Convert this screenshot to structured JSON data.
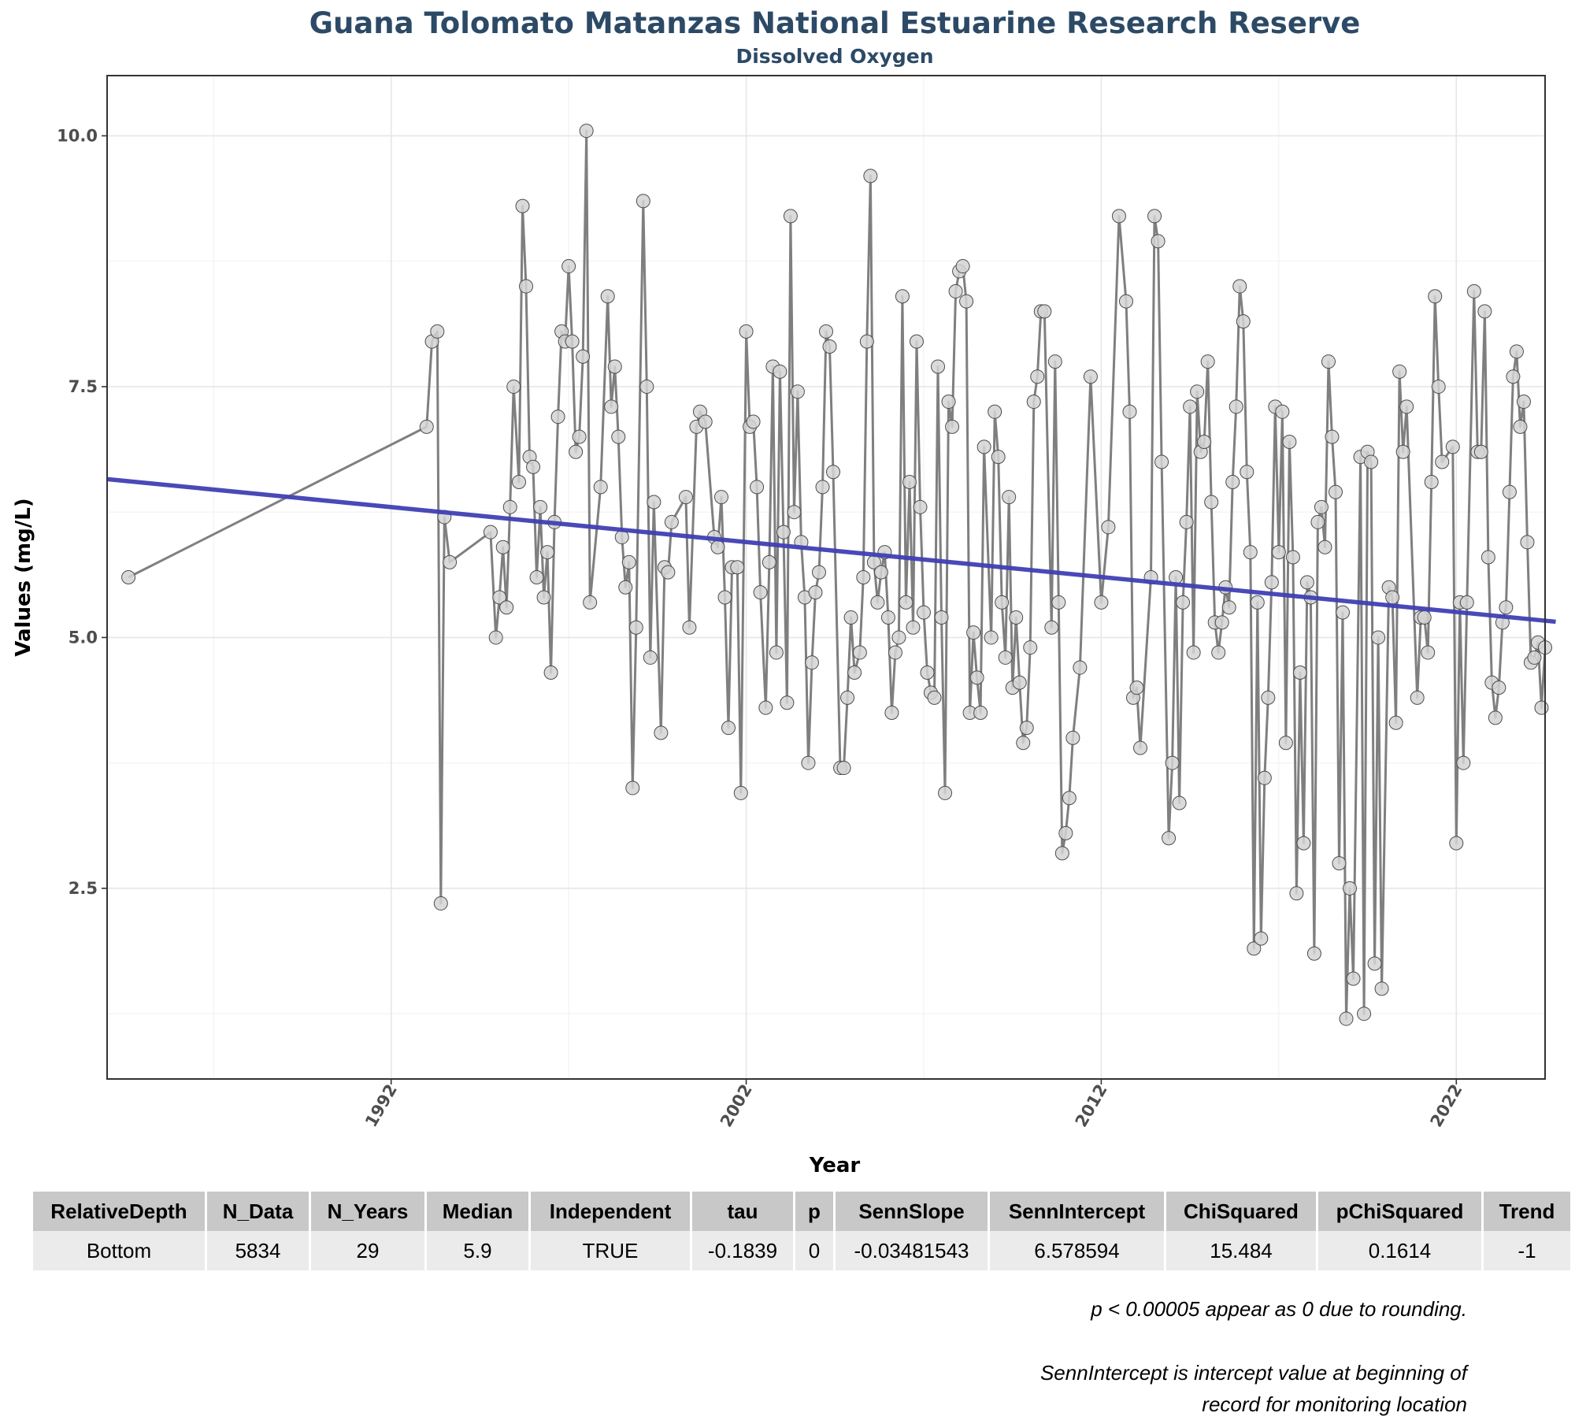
{
  "chart_data": {
    "type": "line",
    "title": "Guana Tolomato Matanzas National Estuarine Research Reserve",
    "subtitle": "Dissolved Oxygen",
    "xlabel": "Year",
    "ylabel": "Values (mg/L)",
    "xlim": [
      1984,
      2024.5
    ],
    "ylim": [
      0.6,
      10.6
    ],
    "x_ticks": [
      1992,
      2002,
      2012,
      2022
    ],
    "y_ticks": [
      "2.5",
      "5.0",
      "7.5",
      "10.0"
    ],
    "grid": true,
    "series": [
      {
        "points": [
          [
            1984.6,
            5.6
          ],
          [
            1993.0,
            7.1
          ],
          [
            1993.15,
            7.95
          ],
          [
            1993.3,
            8.05
          ],
          [
            1993.4,
            2.35
          ],
          [
            1993.5,
            6.2
          ],
          [
            1993.65,
            5.75
          ],
          [
            1994.8,
            6.05
          ],
          [
            1994.95,
            5.0
          ],
          [
            1995.05,
            5.4
          ],
          [
            1995.15,
            5.9
          ],
          [
            1995.25,
            5.3
          ],
          [
            1995.35,
            6.3
          ],
          [
            1995.45,
            7.5
          ],
          [
            1995.6,
            6.55
          ],
          [
            1995.7,
            9.3
          ],
          [
            1995.8,
            8.5
          ],
          [
            1995.9,
            6.8
          ],
          [
            1996.0,
            6.7
          ],
          [
            1996.1,
            5.6
          ],
          [
            1996.2,
            6.3
          ],
          [
            1996.3,
            5.4
          ],
          [
            1996.4,
            5.85
          ],
          [
            1996.5,
            4.65
          ],
          [
            1996.6,
            6.15
          ],
          [
            1996.7,
            7.2
          ],
          [
            1996.8,
            8.05
          ],
          [
            1996.9,
            7.95
          ],
          [
            1997.0,
            8.7
          ],
          [
            1997.1,
            7.95
          ],
          [
            1997.2,
            6.85
          ],
          [
            1997.3,
            7.0
          ],
          [
            1997.4,
            7.8
          ],
          [
            1997.5,
            10.05
          ],
          [
            1997.6,
            5.35
          ],
          [
            1997.9,
            6.5
          ],
          [
            1998.1,
            8.4
          ],
          [
            1998.2,
            7.3
          ],
          [
            1998.3,
            7.7
          ],
          [
            1998.4,
            7.0
          ],
          [
            1998.5,
            6.0
          ],
          [
            1998.6,
            5.5
          ],
          [
            1998.7,
            5.75
          ],
          [
            1998.8,
            3.5
          ],
          [
            1998.9,
            5.1
          ],
          [
            1999.1,
            9.35
          ],
          [
            1999.2,
            7.5
          ],
          [
            1999.3,
            4.8
          ],
          [
            1999.4,
            6.35
          ],
          [
            1999.6,
            4.05
          ],
          [
            1999.7,
            5.7
          ],
          [
            1999.8,
            5.65
          ],
          [
            1999.9,
            6.15
          ],
          [
            2000.3,
            6.4
          ],
          [
            2000.4,
            5.1
          ],
          [
            2000.6,
            7.1
          ],
          [
            2000.7,
            7.25
          ],
          [
            2000.85,
            7.15
          ],
          [
            2001.1,
            6.0
          ],
          [
            2001.2,
            5.9
          ],
          [
            2001.3,
            6.4
          ],
          [
            2001.4,
            5.4
          ],
          [
            2001.5,
            4.1
          ],
          [
            2001.6,
            5.7
          ],
          [
            2001.75,
            5.7
          ],
          [
            2001.85,
            3.45
          ],
          [
            2002.0,
            8.05
          ],
          [
            2002.1,
            7.1
          ],
          [
            2002.2,
            7.15
          ],
          [
            2002.3,
            6.5
          ],
          [
            2002.4,
            5.45
          ],
          [
            2002.55,
            4.3
          ],
          [
            2002.65,
            5.75
          ],
          [
            2002.75,
            7.7
          ],
          [
            2002.85,
            4.85
          ],
          [
            2002.95,
            7.65
          ],
          [
            2003.05,
            6.05
          ],
          [
            2003.15,
            4.35
          ],
          [
            2003.25,
            9.2
          ],
          [
            2003.35,
            6.25
          ],
          [
            2003.45,
            7.45
          ],
          [
            2003.55,
            5.95
          ],
          [
            2003.65,
            5.4
          ],
          [
            2003.75,
            3.75
          ],
          [
            2003.85,
            4.75
          ],
          [
            2003.95,
            5.45
          ],
          [
            2004.05,
            5.65
          ],
          [
            2004.15,
            6.5
          ],
          [
            2004.25,
            8.05
          ],
          [
            2004.35,
            7.9
          ],
          [
            2004.45,
            6.65
          ],
          [
            2004.65,
            3.7
          ],
          [
            2004.75,
            3.7
          ],
          [
            2004.85,
            4.4
          ],
          [
            2004.95,
            5.2
          ],
          [
            2005.05,
            4.65
          ],
          [
            2005.2,
            4.85
          ],
          [
            2005.3,
            5.6
          ],
          [
            2005.4,
            7.95
          ],
          [
            2005.5,
            9.6
          ],
          [
            2005.6,
            5.75
          ],
          [
            2005.7,
            5.35
          ],
          [
            2005.8,
            5.65
          ],
          [
            2005.9,
            5.85
          ],
          [
            2006.0,
            5.2
          ],
          [
            2006.1,
            4.25
          ],
          [
            2006.2,
            4.85
          ],
          [
            2006.3,
            5.0
          ],
          [
            2006.4,
            8.4
          ],
          [
            2006.5,
            5.35
          ],
          [
            2006.6,
            6.55
          ],
          [
            2006.7,
            5.1
          ],
          [
            2006.8,
            7.95
          ],
          [
            2006.9,
            6.3
          ],
          [
            2007.0,
            5.25
          ],
          [
            2007.1,
            4.65
          ],
          [
            2007.2,
            4.45
          ],
          [
            2007.3,
            4.4
          ],
          [
            2007.4,
            7.7
          ],
          [
            2007.5,
            5.2
          ],
          [
            2007.6,
            3.45
          ],
          [
            2007.7,
            7.35
          ],
          [
            2007.8,
            7.1
          ],
          [
            2007.9,
            8.45
          ],
          [
            2008.0,
            8.65
          ],
          [
            2008.1,
            8.7
          ],
          [
            2008.2,
            8.35
          ],
          [
            2008.3,
            4.25
          ],
          [
            2008.4,
            5.05
          ],
          [
            2008.5,
            4.6
          ],
          [
            2008.6,
            4.25
          ],
          [
            2008.7,
            6.9
          ],
          [
            2008.9,
            5.0
          ],
          [
            2009.0,
            7.25
          ],
          [
            2009.1,
            6.8
          ],
          [
            2009.2,
            5.35
          ],
          [
            2009.3,
            4.8
          ],
          [
            2009.4,
            6.4
          ],
          [
            2009.5,
            4.5
          ],
          [
            2009.6,
            5.2
          ],
          [
            2009.7,
            4.55
          ],
          [
            2009.8,
            3.95
          ],
          [
            2009.9,
            4.1
          ],
          [
            2010.0,
            4.9
          ],
          [
            2010.1,
            7.35
          ],
          [
            2010.2,
            7.6
          ],
          [
            2010.3,
            8.25
          ],
          [
            2010.4,
            8.25
          ],
          [
            2010.6,
            5.1
          ],
          [
            2010.7,
            7.75
          ],
          [
            2010.8,
            5.35
          ],
          [
            2010.9,
            2.85
          ],
          [
            2011.0,
            3.05
          ],
          [
            2011.1,
            3.4
          ],
          [
            2011.2,
            4.0
          ],
          [
            2011.4,
            4.7
          ],
          [
            2011.7,
            7.6
          ],
          [
            2012.0,
            5.35
          ],
          [
            2012.2,
            6.1
          ],
          [
            2012.5,
            9.2
          ],
          [
            2012.7,
            8.35
          ],
          [
            2012.8,
            7.25
          ],
          [
            2012.9,
            4.4
          ],
          [
            2013.0,
            4.5
          ],
          [
            2013.1,
            3.9
          ],
          [
            2013.4,
            5.6
          ],
          [
            2013.5,
            9.2
          ],
          [
            2013.6,
            8.95
          ],
          [
            2013.7,
            6.75
          ],
          [
            2013.9,
            3.0
          ],
          [
            2014.0,
            3.75
          ],
          [
            2014.1,
            5.6
          ],
          [
            2014.2,
            3.35
          ],
          [
            2014.3,
            5.35
          ],
          [
            2014.4,
            6.15
          ],
          [
            2014.5,
            7.3
          ],
          [
            2014.6,
            4.85
          ],
          [
            2014.7,
            7.45
          ],
          [
            2014.8,
            6.85
          ],
          [
            2014.9,
            6.95
          ],
          [
            2015.0,
            7.75
          ],
          [
            2015.1,
            6.35
          ],
          [
            2015.2,
            5.15
          ],
          [
            2015.3,
            4.85
          ],
          [
            2015.4,
            5.15
          ],
          [
            2015.5,
            5.5
          ],
          [
            2015.6,
            5.3
          ],
          [
            2015.7,
            6.55
          ],
          [
            2015.8,
            7.3
          ],
          [
            2015.9,
            8.5
          ],
          [
            2016.0,
            8.15
          ],
          [
            2016.1,
            6.65
          ],
          [
            2016.2,
            5.85
          ],
          [
            2016.3,
            1.9
          ],
          [
            2016.4,
            5.35
          ],
          [
            2016.5,
            2.0
          ],
          [
            2016.6,
            3.6
          ],
          [
            2016.7,
            4.4
          ],
          [
            2016.8,
            5.55
          ],
          [
            2016.9,
            7.3
          ],
          [
            2017.0,
            5.85
          ],
          [
            2017.1,
            7.25
          ],
          [
            2017.2,
            3.95
          ],
          [
            2017.3,
            6.95
          ],
          [
            2017.4,
            5.8
          ],
          [
            2017.5,
            2.45
          ],
          [
            2017.6,
            4.65
          ],
          [
            2017.7,
            2.95
          ],
          [
            2017.8,
            5.55
          ],
          [
            2017.9,
            5.4
          ],
          [
            2018.0,
            1.85
          ],
          [
            2018.1,
            6.15
          ],
          [
            2018.2,
            6.3
          ],
          [
            2018.3,
            5.9
          ],
          [
            2018.4,
            7.75
          ],
          [
            2018.5,
            7.0
          ],
          [
            2018.6,
            6.45
          ],
          [
            2018.7,
            2.75
          ],
          [
            2018.8,
            5.25
          ],
          [
            2018.9,
            1.2
          ],
          [
            2019.0,
            2.5
          ],
          [
            2019.1,
            1.6
          ],
          [
            2019.3,
            6.8
          ],
          [
            2019.4,
            1.25
          ],
          [
            2019.5,
            6.85
          ],
          [
            2019.6,
            6.75
          ],
          [
            2019.7,
            1.75
          ],
          [
            2019.8,
            5.0
          ],
          [
            2019.9,
            1.5
          ],
          [
            2020.1,
            5.5
          ],
          [
            2020.2,
            5.4
          ],
          [
            2020.3,
            4.15
          ],
          [
            2020.4,
            7.65
          ],
          [
            2020.5,
            6.85
          ],
          [
            2020.6,
            7.3
          ],
          [
            2020.9,
            4.4
          ],
          [
            2021.0,
            5.2
          ],
          [
            2021.1,
            5.2
          ],
          [
            2021.2,
            4.85
          ],
          [
            2021.3,
            6.55
          ],
          [
            2021.4,
            8.4
          ],
          [
            2021.5,
            7.5
          ],
          [
            2021.6,
            6.75
          ],
          [
            2021.9,
            6.9
          ],
          [
            2022.0,
            2.95
          ],
          [
            2022.1,
            5.35
          ],
          [
            2022.2,
            3.75
          ],
          [
            2022.3,
            5.35
          ],
          [
            2022.5,
            8.45
          ],
          [
            2022.6,
            6.85
          ],
          [
            2022.7,
            6.85
          ],
          [
            2022.8,
            8.25
          ],
          [
            2022.9,
            5.8
          ],
          [
            2023.0,
            4.55
          ],
          [
            2023.1,
            4.2
          ],
          [
            2023.2,
            4.5
          ],
          [
            2023.3,
            5.15
          ],
          [
            2023.4,
            5.3
          ],
          [
            2023.5,
            6.45
          ],
          [
            2023.6,
            7.6
          ],
          [
            2023.7,
            7.85
          ],
          [
            2023.8,
            7.1
          ],
          [
            2023.9,
            7.35
          ],
          [
            2024.0,
            5.95
          ],
          [
            2024.1,
            4.75
          ],
          [
            2024.2,
            4.8
          ],
          [
            2024.3,
            4.95
          ],
          [
            2024.4,
            4.3
          ],
          [
            2024.5,
            4.9
          ]
        ]
      }
    ],
    "trend_line": {
      "x": [
        1984.0,
        2024.8
      ],
      "y": [
        6.578594,
        5.157
      ]
    }
  },
  "table": {
    "headers": [
      "RelativeDepth",
      "N_Data",
      "N_Years",
      "Median",
      "Independent",
      "tau",
      "p",
      "SennSlope",
      "SennIntercept",
      "ChiSquared",
      "pChiSquared",
      "Trend"
    ],
    "rows": [
      [
        "Bottom",
        "5834",
        "29",
        "5.9",
        "TRUE",
        "-0.1839",
        "0",
        "-0.03481543",
        "6.578594",
        "15.484",
        "0.1614",
        "-1"
      ]
    ]
  },
  "notes": {
    "rounding": "p < 0.00005 appear as 0 due to rounding.",
    "intercept_line1": "SennIntercept is intercept value at beginning of",
    "intercept_line2": "record for monitoring location"
  },
  "colors": {
    "data_line": "#7f7f7f",
    "point_fill": "#d3d3d3",
    "trend": "#3f3fb4",
    "title": "#2c4a66"
  }
}
